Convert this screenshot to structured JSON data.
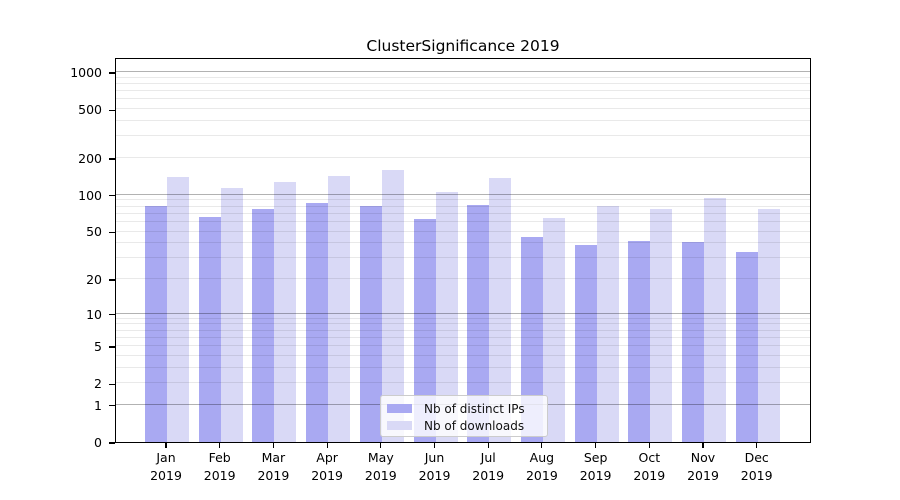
{
  "title": "ClusterSignificance 2019",
  "chart_data": {
    "type": "bar",
    "title": "ClusterSignificance 2019",
    "x_categories_line1": [
      "Jan",
      "Feb",
      "Mar",
      "Apr",
      "May",
      "Jun",
      "Jul",
      "Aug",
      "Sep",
      "Oct",
      "Nov",
      "Dec"
    ],
    "x_categories_line2": "2019",
    "series": [
      {
        "name": "Nb of distinct IPs",
        "color": "#a9a9f2",
        "values": [
          81,
          66,
          77,
          86,
          81,
          64,
          83,
          45,
          39,
          42,
          41,
          34
        ]
      },
      {
        "name": "Nb of downloads",
        "color": "#d9d9f6",
        "values": [
          140,
          113,
          127,
          142,
          161,
          105,
          137,
          65,
          81,
          76,
          94,
          76
        ]
      }
    ],
    "y_axis": {
      "scale": "log1p",
      "tick_labels": [
        0,
        1,
        2,
        5,
        10,
        20,
        50,
        100,
        200,
        500,
        1000
      ],
      "range_max": 1330
    },
    "legend": {
      "position": "lower center",
      "entries": [
        "Nb of distinct IPs",
        "Nb of downloads"
      ]
    },
    "grid": "horizontal, log minor and major lines"
  }
}
